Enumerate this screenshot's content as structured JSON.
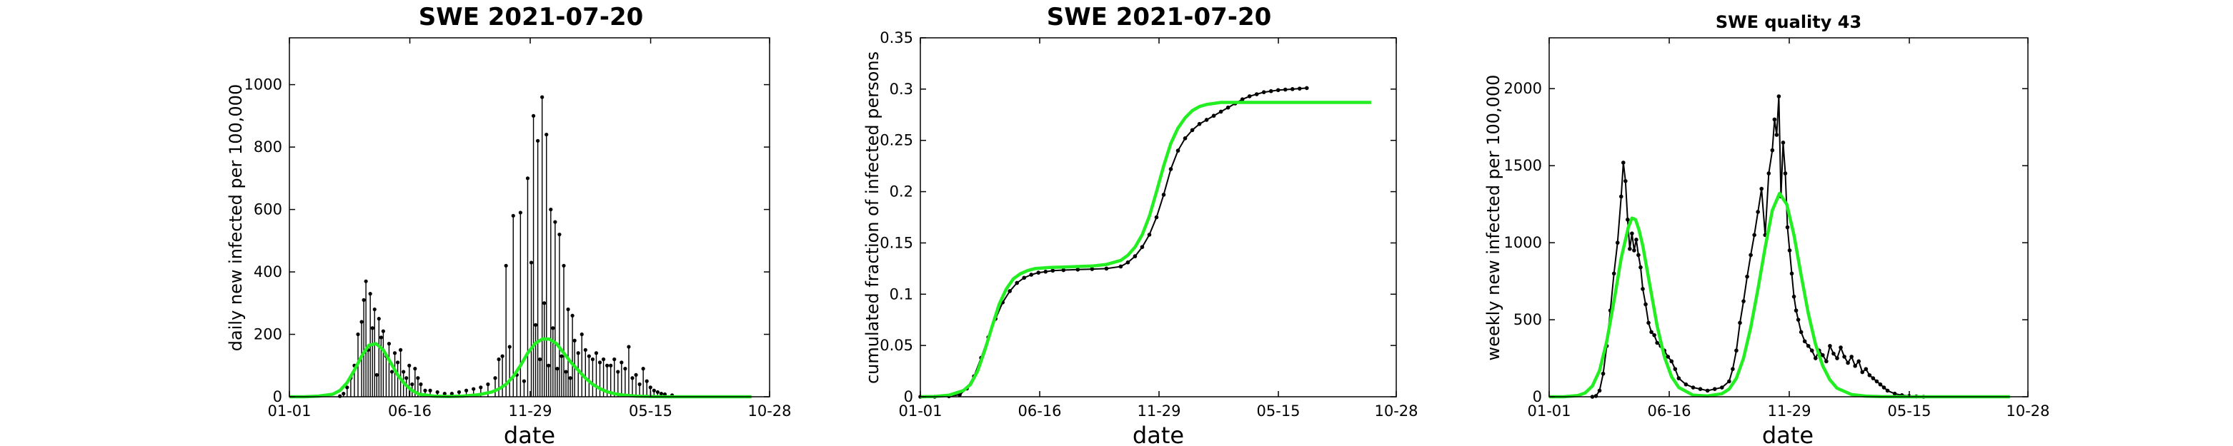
{
  "colors": {
    "data": "#000000",
    "fit": "#22ee22",
    "axes": "#000000"
  },
  "chart_data": [
    {
      "id": "daily",
      "type": "bar",
      "title": "SWE   2021-07-20",
      "title_style": "large",
      "xlabel": "date",
      "ylabel": "daily new infected per 100,000",
      "x_tick_labels": [
        "01-01",
        "06-16",
        "11-29",
        "05-15",
        "10-28"
      ],
      "xlim": [
        0,
        665
      ],
      "ylim": [
        0,
        1150
      ],
      "y_ticks": [
        0,
        200,
        400,
        600,
        800,
        1000
      ],
      "y_tick_labels": [
        "0",
        "200",
        "400",
        "600",
        "800",
        "1000"
      ],
      "grid": false,
      "legend": "none",
      "series": [
        {
          "style": "stem",
          "color": "#000000",
          "x": [
            70,
            75,
            80,
            85,
            90,
            95,
            100,
            103,
            106,
            109,
            112,
            115,
            118,
            121,
            124,
            127,
            130,
            134,
            138,
            142,
            146,
            150,
            154,
            158,
            162,
            166,
            170,
            174,
            178,
            182,
            188,
            195,
            205,
            215,
            225,
            235,
            245,
            255,
            265,
            275,
            285,
            290,
            295,
            300,
            305,
            310,
            315,
            320,
            325,
            330,
            335,
            338,
            341,
            344,
            347,
            350,
            353,
            356,
            359,
            362,
            365,
            368,
            371,
            374,
            377,
            380,
            383,
            386,
            389,
            392,
            395,
            400,
            405,
            410,
            415,
            420,
            425,
            430,
            435,
            440,
            445,
            450,
            455,
            460,
            465,
            470,
            475,
            480,
            485,
            490,
            495,
            500,
            505,
            510,
            515,
            520,
            530
          ],
          "y": [
            2,
            10,
            30,
            60,
            100,
            200,
            240,
            310,
            370,
            150,
            330,
            220,
            280,
            70,
            250,
            190,
            210,
            130,
            170,
            80,
            140,
            110,
            150,
            80,
            60,
            100,
            40,
            90,
            60,
            40,
            20,
            20,
            15,
            10,
            10,
            15,
            20,
            25,
            30,
            40,
            60,
            120,
            130,
            420,
            160,
            580,
            70,
            590,
            50,
            700,
            430,
            900,
            230,
            820,
            120,
            960,
            300,
            840,
            100,
            600,
            220,
            560,
            90,
            520,
            130,
            420,
            80,
            280,
            60,
            260,
            180,
            140,
            200,
            150,
            130,
            120,
            140,
            110,
            120,
            100,
            100,
            120,
            80,
            110,
            90,
            160,
            60,
            70,
            40,
            90,
            50,
            30,
            20,
            15,
            10,
            8,
            5
          ]
        },
        {
          "style": "line",
          "color": "#22ee22",
          "x": [
            0,
            20,
            40,
            60,
            70,
            80,
            90,
            100,
            110,
            120,
            130,
            140,
            150,
            160,
            170,
            180,
            200,
            220,
            240,
            260,
            280,
            290,
            300,
            310,
            320,
            330,
            340,
            350,
            360,
            370,
            380,
            390,
            400,
            410,
            420,
            430,
            440,
            450,
            460,
            480,
            500,
            520,
            540,
            560,
            600,
            640
          ],
          "y": [
            0,
            0,
            2,
            8,
            20,
            45,
            85,
            130,
            165,
            170,
            150,
            110,
            70,
            40,
            20,
            8,
            2,
            1,
            2,
            6,
            15,
            25,
            40,
            65,
            100,
            140,
            170,
            185,
            185,
            170,
            140,
            110,
            85,
            60,
            40,
            26,
            16,
            10,
            6,
            2,
            1,
            0,
            0,
            0,
            0,
            0
          ]
        }
      ]
    },
    {
      "id": "cumulative",
      "type": "line",
      "title": "SWE   2021-07-20",
      "title_style": "large",
      "xlabel": "date",
      "ylabel": "cumulated fraction of infected persons",
      "x_tick_labels": [
        "01-01",
        "06-16",
        "11-29",
        "05-15",
        "10-28"
      ],
      "xlim": [
        0,
        665
      ],
      "ylim": [
        0,
        0.35
      ],
      "y_ticks": [
        0,
        0.05,
        0.1,
        0.15,
        0.2,
        0.25,
        0.3,
        0.35
      ],
      "y_tick_labels": [
        "0",
        "0.05",
        "0.1",
        "0.15",
        "0.2",
        "0.25",
        "0.3",
        "0.35"
      ],
      "grid": false,
      "legend": "none",
      "series": [
        {
          "style": "dots-line",
          "color": "#000000",
          "x": [
            0,
            20,
            40,
            55,
            65,
            75,
            85,
            95,
            105,
            115,
            125,
            135,
            145,
            155,
            165,
            175,
            185,
            200,
            220,
            240,
            260,
            280,
            290,
            300,
            310,
            320,
            330,
            340,
            350,
            360,
            370,
            380,
            390,
            400,
            410,
            420,
            430,
            440,
            450,
            460,
            470,
            480,
            490,
            500,
            510,
            520,
            530,
            540
          ],
          "y": [
            0,
            0,
            0.0005,
            0.002,
            0.008,
            0.02,
            0.038,
            0.058,
            0.076,
            0.092,
            0.103,
            0.111,
            0.116,
            0.119,
            0.121,
            0.122,
            0.123,
            0.1235,
            0.124,
            0.1245,
            0.125,
            0.127,
            0.131,
            0.137,
            0.146,
            0.158,
            0.175,
            0.197,
            0.222,
            0.24,
            0.252,
            0.26,
            0.266,
            0.27,
            0.274,
            0.278,
            0.282,
            0.286,
            0.29,
            0.293,
            0.295,
            0.297,
            0.298,
            0.299,
            0.2995,
            0.3,
            0.3005,
            0.301
          ]
        },
        {
          "style": "line",
          "color": "#22ee22",
          "x": [
            0,
            20,
            40,
            60,
            70,
            80,
            90,
            100,
            110,
            120,
            130,
            140,
            150,
            160,
            180,
            200,
            220,
            240,
            260,
            280,
            290,
            300,
            310,
            320,
            330,
            340,
            350,
            360,
            370,
            380,
            390,
            400,
            420,
            440,
            460,
            500,
            550,
            600,
            630
          ],
          "y": [
            0,
            0.0003,
            0.0015,
            0.006,
            0.012,
            0.025,
            0.045,
            0.068,
            0.09,
            0.105,
            0.115,
            0.12,
            0.123,
            0.125,
            0.126,
            0.1265,
            0.127,
            0.1275,
            0.129,
            0.133,
            0.138,
            0.146,
            0.158,
            0.176,
            0.2,
            0.225,
            0.247,
            0.262,
            0.272,
            0.279,
            0.283,
            0.285,
            0.287,
            0.287,
            0.287,
            0.287,
            0.287,
            0.287,
            0.287
          ]
        }
      ]
    },
    {
      "id": "weekly",
      "type": "line",
      "title": "SWE  quality 43",
      "title_style": "small",
      "xlabel": "date",
      "ylabel": "weekly new infected per 100,000",
      "x_tick_labels": [
        "01-01",
        "06-16",
        "11-29",
        "05-15",
        "10-28"
      ],
      "xlim": [
        0,
        665
      ],
      "ylim": [
        0,
        2330
      ],
      "y_ticks": [
        0,
        500,
        1000,
        1500,
        2000
      ],
      "y_tick_labels": [
        "0",
        "500",
        "1000",
        "1500",
        "2000"
      ],
      "grid": false,
      "legend": "none",
      "series": [
        {
          "style": "dots-line",
          "color": "#000000",
          "x": [
            60,
            65,
            70,
            75,
            80,
            85,
            90,
            95,
            100,
            103,
            106,
            109,
            112,
            115,
            118,
            121,
            124,
            127,
            130,
            134,
            138,
            142,
            146,
            150,
            155,
            160,
            165,
            170,
            175,
            180,
            190,
            200,
            210,
            220,
            230,
            240,
            250,
            255,
            260,
            265,
            270,
            275,
            280,
            285,
            290,
            295,
            300,
            305,
            310,
            313,
            316,
            319,
            322,
            325,
            328,
            331,
            334,
            337,
            340,
            343,
            346,
            350,
            355,
            360,
            365,
            370,
            375,
            380,
            385,
            390,
            395,
            400,
            405,
            410,
            415,
            420,
            425,
            430,
            435,
            440,
            445,
            450,
            455,
            460,
            465,
            470,
            480,
            490,
            500,
            510,
            520
          ],
          "y": [
            0,
            5,
            40,
            150,
            330,
            560,
            800,
            1000,
            1300,
            1520,
            1400,
            1150,
            960,
            1060,
            950,
            1020,
            920,
            840,
            700,
            600,
            480,
            420,
            400,
            350,
            330,
            300,
            260,
            230,
            180,
            120,
            80,
            60,
            50,
            40,
            50,
            60,
            100,
            180,
            300,
            480,
            620,
            780,
            920,
            1050,
            1200,
            1350,
            1050,
            1450,
            1600,
            1800,
            1700,
            1950,
            1300,
            1650,
            1450,
            1100,
            950,
            800,
            650,
            560,
            500,
            420,
            360,
            330,
            300,
            250,
            300,
            270,
            230,
            330,
            280,
            250,
            320,
            260,
            220,
            260,
            200,
            230,
            160,
            180,
            140,
            120,
            100,
            80,
            60,
            40,
            20,
            10,
            5,
            2,
            0
          ]
        },
        {
          "style": "line",
          "color": "#22ee22",
          "x": [
            0,
            20,
            40,
            50,
            60,
            70,
            80,
            90,
            100,
            110,
            115,
            120,
            125,
            130,
            140,
            150,
            160,
            170,
            180,
            200,
            220,
            240,
            250,
            260,
            270,
            280,
            290,
            300,
            310,
            320,
            330,
            340,
            350,
            360,
            370,
            380,
            390,
            400,
            420,
            440,
            460,
            500,
            550,
            640
          ],
          "y": [
            0,
            0,
            8,
            25,
            70,
            170,
            360,
            620,
            900,
            1100,
            1160,
            1150,
            1080,
            980,
            720,
            460,
            260,
            130,
            60,
            10,
            5,
            20,
            50,
            120,
            250,
            450,
            700,
            970,
            1210,
            1320,
            1250,
            1050,
            790,
            540,
            340,
            200,
            110,
            55,
            15,
            4,
            1,
            0,
            0,
            0
          ]
        }
      ]
    }
  ]
}
